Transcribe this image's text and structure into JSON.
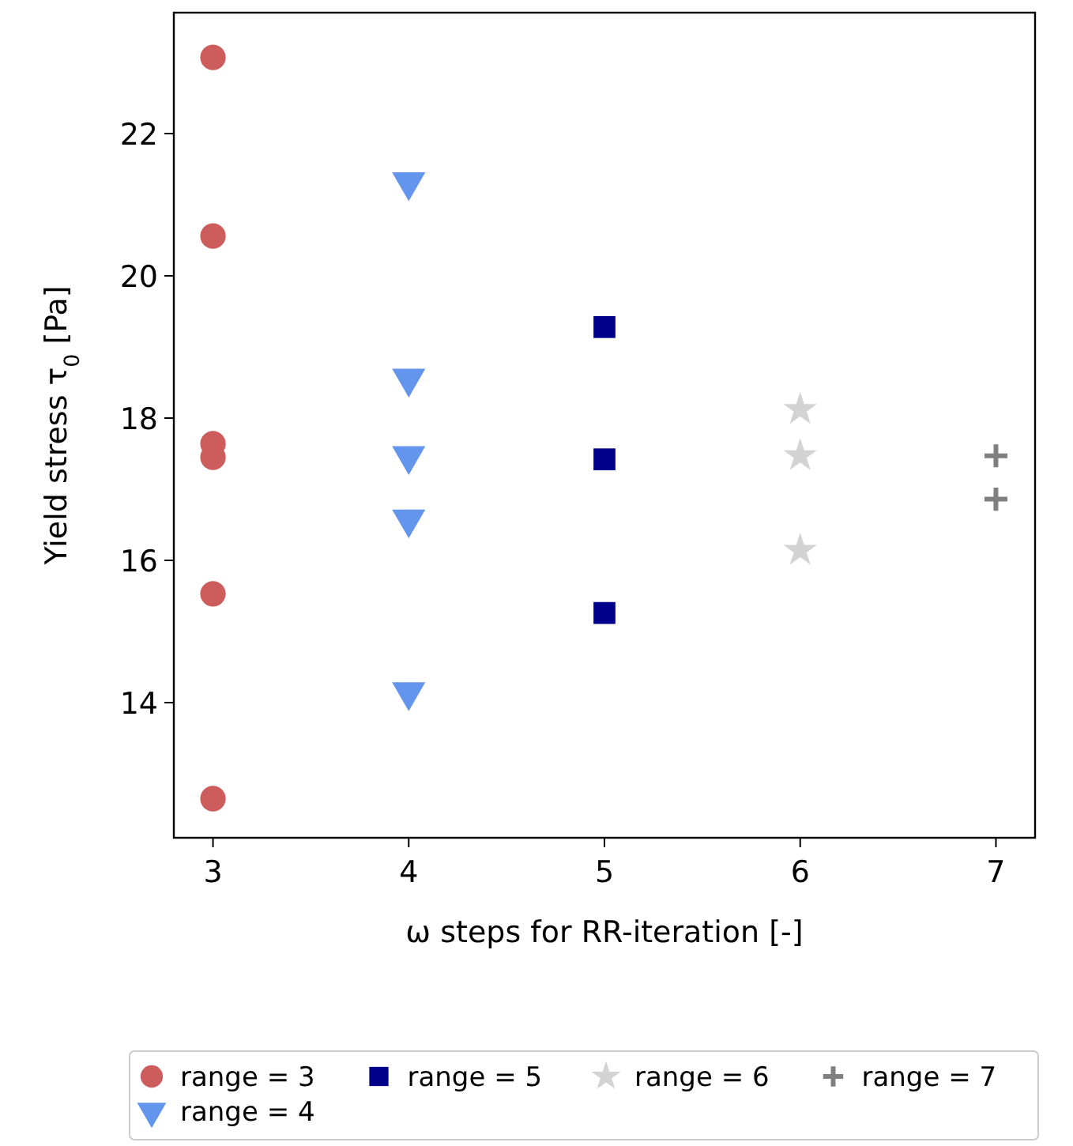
{
  "chart_data": {
    "type": "scatter",
    "xlabel": "ω steps for RR-iteration [-]",
    "ylabel": "Yield stress τ$_{0}$ [Pa]",
    "xlim": [
      2.8,
      7.2
    ],
    "xticks": [
      3,
      4,
      5,
      6,
      7
    ],
    "ylim": [
      12.1,
      23.7
    ],
    "yticks": [
      14,
      16,
      18,
      20,
      22
    ],
    "grid": false,
    "legend": "bottom",
    "series": [
      {
        "name": "range = 3",
        "color": "#cd5c5c",
        "marker": "circle",
        "x": [
          3,
          3,
          3,
          3,
          3,
          3
        ],
        "values": [
          23.07,
          20.56,
          17.64,
          17.45,
          15.53,
          12.65
        ]
      },
      {
        "name": "range = 4",
        "color": "#6495ed",
        "marker": "triangle",
        "x": [
          4,
          4,
          4,
          4,
          4
        ],
        "values": [
          21.32,
          18.56,
          17.47,
          16.58,
          14.15
        ]
      },
      {
        "name": "range = 5",
        "color": "#00008b",
        "marker": "square",
        "x": [
          5,
          5,
          5
        ],
        "values": [
          19.28,
          17.42,
          15.26
        ]
      },
      {
        "name": "range = 6",
        "color": "#d3d3d3",
        "marker": "star",
        "x": [
          6,
          6,
          6
        ],
        "values": [
          18.12,
          17.47,
          16.14
        ]
      },
      {
        "name": "range = 7",
        "color": "#808080",
        "marker": "cross",
        "x": [
          7,
          7
        ],
        "values": [
          17.47,
          16.86
        ]
      }
    ]
  }
}
